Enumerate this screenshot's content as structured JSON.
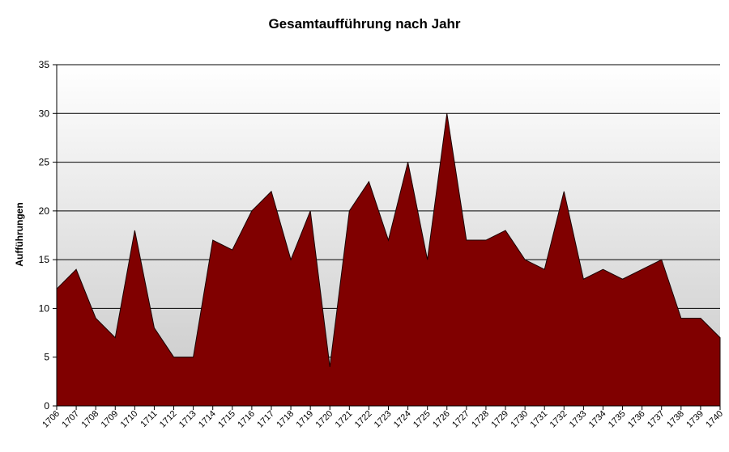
{
  "chart_data": {
    "type": "area",
    "title": "Gesamtaufführung nach Jahr",
    "xlabel": "",
    "ylabel": "Aufführungen",
    "categories": [
      "1706",
      "1707",
      "1708",
      "1709",
      "1710",
      "1711",
      "1712",
      "1713",
      "1714",
      "1715",
      "1716",
      "1717",
      "1718",
      "1719",
      "1720",
      "1721",
      "1722",
      "1723",
      "1724",
      "1725",
      "1726",
      "1727",
      "1728",
      "1729",
      "1730",
      "1731",
      "1732",
      "1733",
      "1734",
      "1735",
      "1736",
      "1737",
      "1738",
      "1739",
      "1740"
    ],
    "values": [
      12,
      14,
      9,
      7,
      18,
      8,
      5,
      5,
      17,
      16,
      20,
      22,
      15,
      20,
      4,
      20,
      23,
      17,
      25,
      15,
      30,
      17,
      17,
      18,
      15,
      14,
      22,
      13,
      14,
      13,
      14,
      15,
      9,
      9,
      7
    ],
    "ylim": [
      0,
      35
    ],
    "yticks": [
      0,
      5,
      10,
      15,
      20,
      25,
      30,
      35
    ],
    "grid": true,
    "legend": "none",
    "colors": {
      "fill": "#800000",
      "stroke": "#1a0000",
      "gridline": "#000000",
      "plot_bg_top": "#ffffff",
      "plot_bg_bottom": "#c8c8c8"
    }
  }
}
